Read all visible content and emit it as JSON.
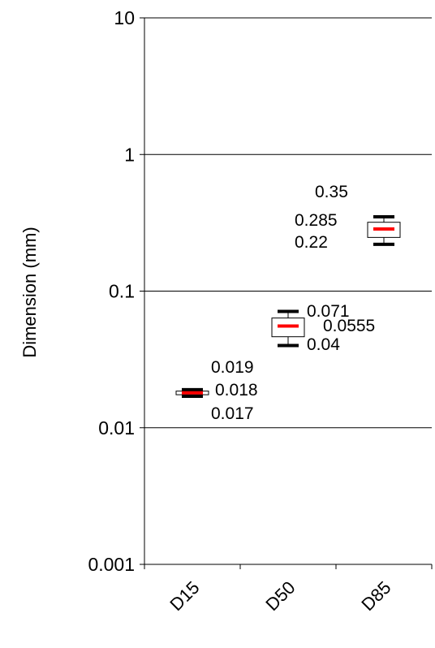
{
  "chart_data": {
    "type": "boxplot",
    "title": "",
    "xlabel": "",
    "ylabel": "Dimension (mm)",
    "y_scale": "log",
    "ylim": [
      0.001,
      10
    ],
    "y_ticks": [
      "10",
      "1",
      "0.1",
      "0.01",
      "0.001"
    ],
    "y_tick_values": [
      10,
      1,
      0.1,
      0.01,
      0.001
    ],
    "categories": [
      "D15",
      "D50",
      "D85"
    ],
    "grid": true,
    "legend": "none",
    "median_color": "#ff0000",
    "box_color": "#000000",
    "series": [
      {
        "category": "D15",
        "min": 0.017,
        "median": 0.018,
        "max": 0.019,
        "labels": {
          "max": "0.019",
          "median": "0.018",
          "min": "0.017"
        }
      },
      {
        "category": "D50",
        "min": 0.04,
        "median": 0.0555,
        "max": 0.071,
        "labels": {
          "max": "0.071",
          "median": "0.0555",
          "min": "0.04"
        }
      },
      {
        "category": "D85",
        "min": 0.22,
        "median": 0.285,
        "max": 0.35,
        "labels": {
          "max": "0.35",
          "median": "0.285",
          "min": "0.22"
        }
      }
    ]
  }
}
